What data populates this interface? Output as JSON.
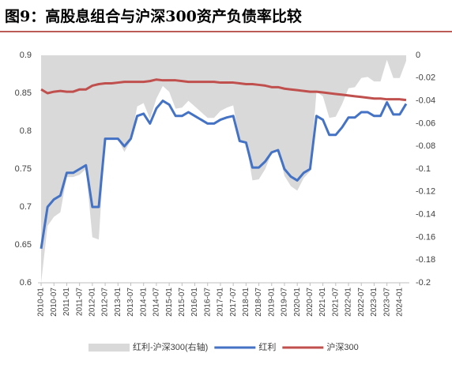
{
  "chart_data": {
    "type": "line",
    "title": "图9：高股息组合与沪深300资产负债率比较",
    "categories": [
      "2010-01",
      null,
      "2010-07",
      null,
      "2011-01",
      null,
      "2011-07",
      null,
      "2012-01",
      null,
      "2012-07",
      null,
      "2013-01",
      null,
      "2013-07",
      null,
      "2014-01",
      null,
      "2014-07",
      null,
      "2015-01",
      null,
      "2015-07",
      null,
      "2016-01",
      null,
      "2016-07",
      null,
      "2017-01",
      null,
      "2017-07",
      null,
      "2018-01",
      null,
      "2018-07",
      null,
      "2019-01",
      null,
      "2019-07",
      null,
      "2020-01",
      null,
      "2020-07",
      null,
      "2021-01",
      null,
      "2021-07",
      null,
      "2022-01",
      null,
      "2022-07",
      null,
      "2023-01",
      null,
      "2023-07",
      null,
      "2024-01",
      null
    ],
    "series": [
      {
        "name": "红利-沪深300(右轴)",
        "color": "#d9d9d9",
        "axis": "y2",
        "kind": "area",
        "values": [
          -0.2,
          -0.15,
          -0.142,
          -0.138,
          -0.107,
          -0.107,
          -0.105,
          -0.1,
          -0.16,
          -0.162,
          -0.073,
          -0.073,
          -0.074,
          -0.085,
          -0.075,
          -0.045,
          -0.042,
          -0.056,
          -0.038,
          -0.027,
          -0.032,
          -0.047,
          -0.046,
          -0.04,
          -0.045,
          -0.05,
          -0.055,
          -0.055,
          -0.049,
          -0.046,
          -0.044,
          -0.076,
          -0.077,
          -0.11,
          -0.109,
          -0.1,
          -0.086,
          -0.083,
          -0.106,
          -0.115,
          -0.119,
          -0.108,
          -0.102,
          -0.032,
          -0.036,
          -0.055,
          -0.054,
          -0.043,
          -0.029,
          -0.028,
          -0.02,
          -0.019,
          -0.023,
          -0.023,
          -0.004,
          -0.02,
          -0.02,
          -0.005
        ]
      },
      {
        "name": "红利",
        "color": "#4472c4",
        "values": [
          0.645,
          0.7,
          0.71,
          0.715,
          0.745,
          0.745,
          0.75,
          0.755,
          0.7,
          0.7,
          0.79,
          0.79,
          0.79,
          0.78,
          0.79,
          0.82,
          0.823,
          0.81,
          0.83,
          0.84,
          0.835,
          0.82,
          0.82,
          0.825,
          0.82,
          0.815,
          0.81,
          0.81,
          0.815,
          0.818,
          0.82,
          0.787,
          0.785,
          0.752,
          0.752,
          0.76,
          0.772,
          0.775,
          0.75,
          0.74,
          0.735,
          0.745,
          0.75,
          0.82,
          0.815,
          0.795,
          0.795,
          0.805,
          0.818,
          0.818,
          0.825,
          0.825,
          0.82,
          0.82,
          0.838,
          0.822,
          0.822,
          0.836
        ]
      },
      {
        "name": "沪深300",
        "color": "#c0504d",
        "values": [
          0.855,
          0.85,
          0.852,
          0.853,
          0.852,
          0.852,
          0.855,
          0.855,
          0.86,
          0.862,
          0.863,
          0.863,
          0.864,
          0.865,
          0.865,
          0.865,
          0.865,
          0.866,
          0.868,
          0.867,
          0.867,
          0.867,
          0.866,
          0.865,
          0.865,
          0.865,
          0.865,
          0.865,
          0.864,
          0.864,
          0.864,
          0.863,
          0.862,
          0.862,
          0.861,
          0.86,
          0.858,
          0.858,
          0.856,
          0.855,
          0.854,
          0.853,
          0.852,
          0.852,
          0.851,
          0.85,
          0.849,
          0.848,
          0.847,
          0.846,
          0.845,
          0.844,
          0.843,
          0.843,
          0.842,
          0.842,
          0.842,
          0.841
        ]
      }
    ],
    "ylim": [
      0.6,
      0.9
    ],
    "yticks": [
      0.6,
      0.65,
      0.7,
      0.75,
      0.8,
      0.85,
      0.9
    ],
    "y2lim": [
      -0.2,
      0
    ],
    "y2ticks": [
      -0.2,
      -0.18,
      -0.16,
      -0.14,
      -0.12,
      -0.1,
      -0.08,
      -0.06,
      -0.04,
      -0.02,
      0
    ],
    "legend": "bottom",
    "grid": false
  }
}
